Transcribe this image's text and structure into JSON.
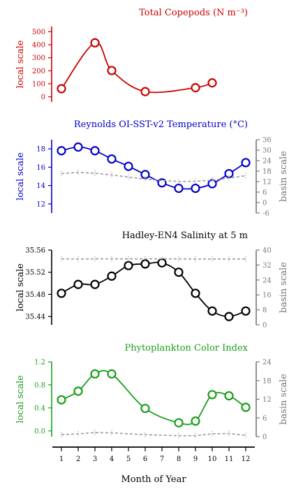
{
  "x_axis": {
    "label": "Month of Year",
    "ticks": [
      "1",
      "2",
      "3",
      "4",
      "5",
      "6",
      "7",
      "8",
      "9",
      "10",
      "11",
      "12"
    ]
  },
  "chart_data": [
    {
      "type": "line",
      "title": "Total Copepods (N m⁻³)",
      "color": "#cc0000",
      "ylabel_left": "local scale",
      "ylabel_right": "",
      "left_ylim": [
        -40,
        540
      ],
      "left_ticks": [
        0,
        100,
        200,
        300,
        400,
        500
      ],
      "series": [
        {
          "axis": "left",
          "style": "solid-markers",
          "x": [
            1,
            3,
            4,
            6,
            9,
            10
          ],
          "y": [
            62,
            415,
            202,
            40,
            70,
            107
          ]
        }
      ]
    },
    {
      "type": "line",
      "title": "Reynolds OI-SST-v2 Temperature (°C)",
      "color": "#0000cc",
      "ylabel_left": "local scale",
      "ylabel_right": "basin scale",
      "left_ylim": [
        11,
        19
      ],
      "left_ticks": [
        12,
        14,
        16,
        18
      ],
      "right_ylim": [
        -6,
        36
      ],
      "right_ticks": [
        -6,
        0,
        6,
        12,
        18,
        24,
        30,
        36
      ],
      "series": [
        {
          "axis": "left",
          "style": "solid-markers",
          "x": [
            1,
            2,
            3,
            4,
            5,
            6,
            7,
            8,
            9,
            10,
            11,
            12
          ],
          "y": [
            17.8,
            18.2,
            17.8,
            16.9,
            16.1,
            15.2,
            14.3,
            13.7,
            13.7,
            14.2,
            15.3,
            16.5
          ]
        },
        {
          "axis": "right",
          "style": "dashed-grey",
          "x": [
            1,
            2,
            3,
            4,
            5,
            6,
            7,
            8,
            9,
            10,
            11,
            12
          ],
          "y": [
            16.6,
            17.3,
            16.8,
            15.8,
            14.6,
            13.5,
            12.6,
            12.1,
            12.2,
            12.8,
            14.1,
            15.4
          ]
        }
      ]
    },
    {
      "type": "line",
      "title": "Hadley-EN4 Salinity at 5 m",
      "color": "#000000",
      "ylabel_left": "local scale",
      "ylabel_right": "basin scale",
      "left_ylim": [
        35.425,
        35.56
      ],
      "left_ticks": [
        35.44,
        35.48,
        35.52,
        35.56
      ],
      "left_tick_labels": [
        "35.44",
        "35.48",
        "35.52",
        "35.56"
      ],
      "right_ylim": [
        0,
        40
      ],
      "right_ticks": [
        0,
        8,
        16,
        24,
        32,
        40
      ],
      "series": [
        {
          "axis": "left",
          "style": "solid-markers",
          "x": [
            1,
            2,
            3,
            4,
            5,
            6,
            7,
            8,
            9,
            10,
            11,
            12
          ],
          "y": [
            35.482,
            35.498,
            35.498,
            35.513,
            35.532,
            35.535,
            35.537,
            35.52,
            35.482,
            35.45,
            35.44,
            35.45
          ]
        },
        {
          "axis": "right",
          "style": "dashed-grey",
          "x": [
            1,
            2,
            3,
            4,
            5,
            6,
            7,
            8,
            9,
            10,
            11,
            12
          ],
          "y": [
            35.3,
            35.2,
            35.3,
            35.3,
            35.3,
            35.3,
            35.3,
            35.3,
            35.2,
            35.2,
            35.2,
            35.2
          ]
        }
      ]
    },
    {
      "type": "line",
      "title": "Phytoplankton Color Index",
      "color": "#1a9e1a",
      "ylabel_left": "local scale",
      "ylabel_right": "basin scale",
      "left_ylim": [
        -0.1,
        1.2
      ],
      "left_ticks": [
        0.0,
        0.4,
        0.8,
        1.2
      ],
      "left_tick_labels": [
        "0.0",
        "0.4",
        "0.8",
        "1.2"
      ],
      "right_ylim": [
        0,
        24
      ],
      "right_ticks": [
        0,
        6,
        12,
        18,
        24
      ],
      "series": [
        {
          "axis": "left",
          "style": "solid-markers",
          "x": [
            1,
            2,
            3,
            4,
            6,
            8,
            9,
            10,
            11,
            12
          ],
          "y": [
            0.54,
            0.69,
            0.99,
            0.99,
            0.39,
            0.14,
            0.17,
            0.63,
            0.61,
            0.41
          ]
        },
        {
          "axis": "right",
          "style": "dashed-grey",
          "x": [
            1,
            2,
            3,
            4,
            6,
            8,
            9,
            10,
            11,
            12
          ],
          "y": [
            0.6,
            0.9,
            1.3,
            1.2,
            0.6,
            0.3,
            0.3,
            0.9,
            1.0,
            0.4
          ]
        }
      ]
    }
  ]
}
